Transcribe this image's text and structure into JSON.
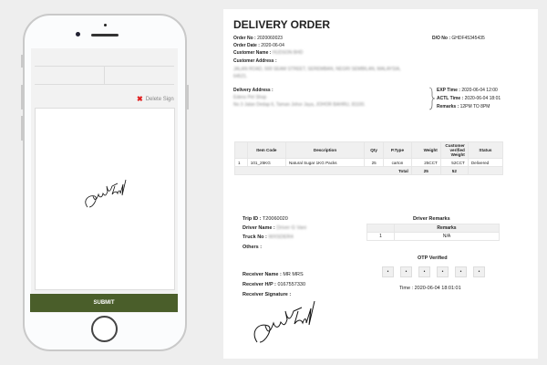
{
  "phone": {
    "delete_sign": "Delete Sign",
    "submit": "SUBMIT"
  },
  "doc": {
    "title": "DELIVERY ORDER",
    "order_no_label": "Order No :",
    "order_no": "2020060023",
    "do_no_label": "D/O No :",
    "do_no": "GHDF45345435",
    "order_date_label": "Order Date :",
    "order_date": "2020-06-04",
    "customer_name_label": "Customer Name :",
    "customer_name": "HUDSON BHD",
    "customer_address_label": "Customer Address :",
    "customer_address": "JALAN ROAD, 569 SEAM STREET, SEREMBAN, NEGRI SEMBILAN, MALAYSIA, 64521.",
    "delivery_address_label": "Delivery Address :",
    "delivery_address_1": "Edens Pet Shop",
    "delivery_address_2": "No 3 Jalan Dedap 6, Taman Johor Jaya, JOHOR BAHRU, 81100.",
    "exp_time_label": "EXP Time :",
    "exp_time": "2020-06-04 12:00",
    "actl_time_label": "ACTL Time :",
    "actl_time": "2020-06-04 18:01",
    "remarks_label": "Remarks :",
    "remarks": "12PM TO 8PM",
    "table": {
      "headers": [
        "",
        "Item Code",
        "Description",
        "Qty",
        "P.Type",
        "Weight",
        "Customer verified Weight",
        "Status"
      ],
      "rows": [
        [
          "1",
          "101_25KG",
          "Natural Sugar 1KG Packs",
          "25",
          "carton",
          "25CCT",
          "52CCT",
          "Delivered"
        ]
      ],
      "total_label": "Total",
      "total_qty": "25",
      "total_weight": "52"
    },
    "trip_id_label": "Trip ID :",
    "trip_id": "T20060020",
    "driver_name_label": "Driver Name :",
    "driver_name": "Driver G Vani",
    "truck_no_label": "Truck No :",
    "truck_no": "WXSDER4",
    "others_label": "Others :",
    "receiver_name_label": "Receiver Name :",
    "receiver_name": "MR MRS",
    "receiver_hp_label": "Receiver H/P :",
    "receiver_hp": "0167557330",
    "receiver_signature_label": "Receiver Signature :",
    "driver_remarks_title": "Driver Remarks",
    "driver_remarks_header": "Remarks",
    "driver_remarks_rows": [
      [
        "1",
        "N/A"
      ]
    ],
    "otp_title": "OTP Verified",
    "otp_digits": [
      "•",
      "•",
      "•",
      "•",
      "•",
      "•"
    ],
    "otp_time": "Time : 2020-06-04 18:01:01"
  },
  "colors": {
    "submit": "#4a5e2a",
    "delete_icon": "#e02020"
  }
}
